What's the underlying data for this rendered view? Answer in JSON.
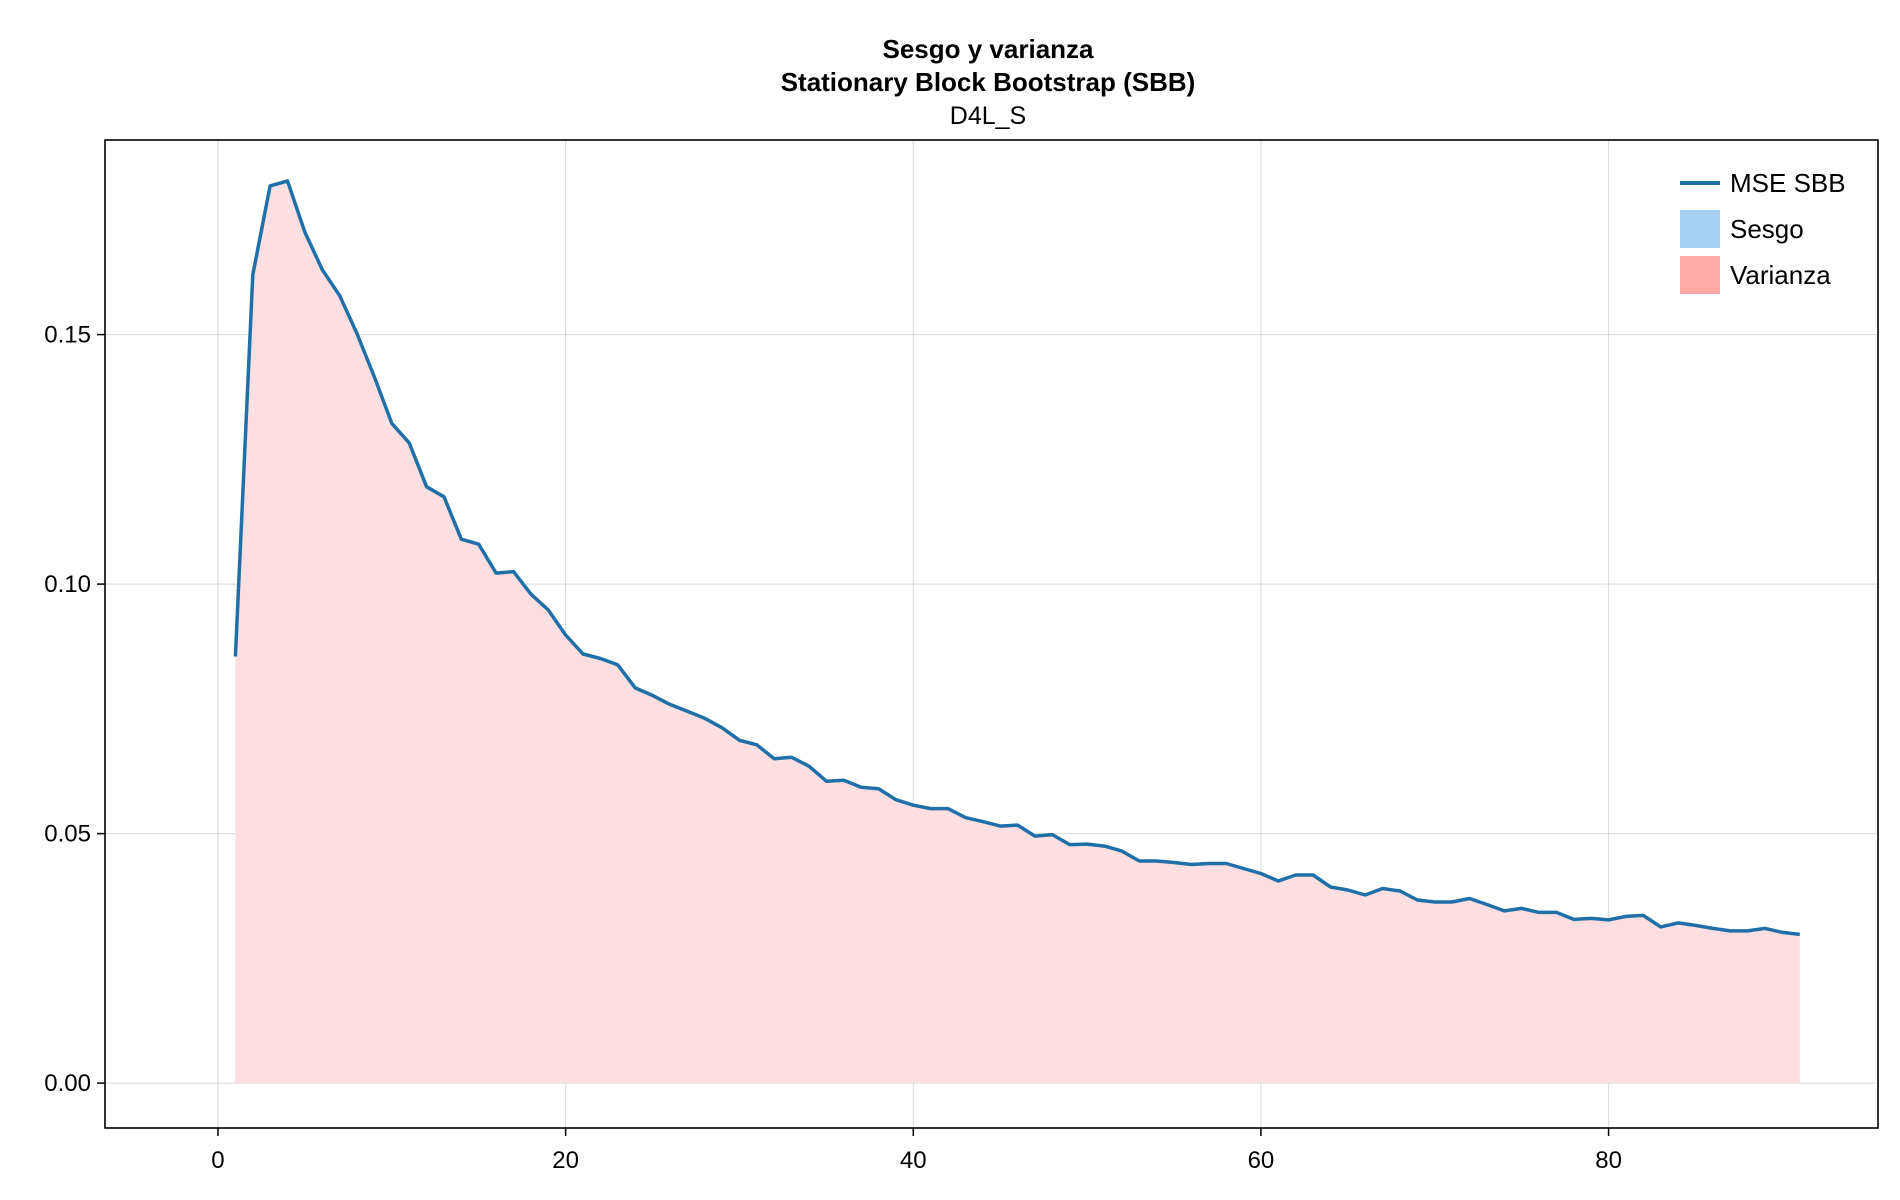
{
  "chart_data": {
    "type": "area",
    "title": "Sesgo y varianza",
    "subtitle_1": "Stationary Block Bootstrap (SBB)",
    "subtitle_2": "D4L_S",
    "xlabel": "",
    "ylabel": "",
    "xlim": [
      -6.5,
      95.5
    ],
    "ylim": [
      -0.009,
      0.189
    ],
    "x_ticks": [
      0,
      20,
      40,
      60,
      80
    ],
    "x_tick_labels": [
      "0",
      "20",
      "40",
      "60",
      "80"
    ],
    "y_ticks": [
      0.0,
      0.05,
      0.1,
      0.15
    ],
    "y_tick_labels": [
      "0.00",
      "0.05",
      "0.10",
      "0.15"
    ],
    "grid": true,
    "legend_position": "top-right",
    "colors": {
      "mse_line": "#1f6fa8",
      "sesgo_fill": "#a6d0f2",
      "varianza_fill": "#fddfe2",
      "varianza_legend": "#ffa8a8"
    },
    "legend": [
      {
        "label": "MSE SBB",
        "kind": "line",
        "color": "#1f6fa8"
      },
      {
        "label": "Sesgo",
        "kind": "patch",
        "color": "#a6d0f2"
      },
      {
        "label": "Varianza",
        "kind": "patch",
        "color": "#ffa8a8"
      }
    ],
    "x": [
      1,
      2,
      3,
      4,
      5,
      6,
      7,
      8,
      9,
      10,
      11,
      12,
      13,
      14,
      15,
      16,
      17,
      18,
      19,
      20,
      21,
      22,
      23,
      24,
      25,
      26,
      27,
      28,
      29,
      30,
      31,
      32,
      33,
      34,
      35,
      36,
      37,
      38,
      39,
      40,
      41,
      42,
      43,
      44,
      45,
      46,
      47,
      48,
      49,
      50,
      51,
      52,
      53,
      54,
      55,
      56,
      57,
      58,
      59,
      60,
      61,
      62,
      63,
      64,
      65,
      66,
      67,
      68,
      69,
      70,
      71,
      72,
      73,
      74,
      75,
      76,
      77,
      78,
      79,
      80,
      81,
      82,
      83,
      84,
      85,
      86,
      87,
      88,
      89,
      90,
      91
    ],
    "series": [
      {
        "name": "MSE SBB",
        "values": [
          0.0855,
          0.162,
          0.1798,
          0.1808,
          0.1705,
          0.163,
          0.1578,
          0.1502,
          0.1415,
          0.1322,
          0.1283,
          0.1195,
          0.1175,
          0.109,
          0.108,
          0.1022,
          0.1025,
          0.098,
          0.0948,
          0.0898,
          0.086,
          0.0851,
          0.0838,
          0.0792,
          0.0777,
          0.0759,
          0.0745,
          0.0731,
          0.0712,
          0.0687,
          0.0678,
          0.065,
          0.0653,
          0.0635,
          0.0605,
          0.0607,
          0.0593,
          0.059,
          0.0568,
          0.0557,
          0.055,
          0.055,
          0.0532,
          0.0524,
          0.0515,
          0.0517,
          0.0495,
          0.0498,
          0.0478,
          0.0479,
          0.0475,
          0.0465,
          0.0445,
          0.0445,
          0.0442,
          0.0438,
          0.044,
          0.044,
          0.043,
          0.042,
          0.0405,
          0.0417,
          0.0417,
          0.0393,
          0.0387,
          0.0377,
          0.039,
          0.0385,
          0.0367,
          0.0363,
          0.0363,
          0.037,
          0.0358,
          0.0345,
          0.035,
          0.0342,
          0.0342,
          0.0328,
          0.033,
          0.0327,
          0.0334,
          0.0336,
          0.0313,
          0.0321,
          0.0316,
          0.031,
          0.0305,
          0.0305,
          0.031,
          0.0302,
          0.0298
        ]
      }
    ]
  }
}
